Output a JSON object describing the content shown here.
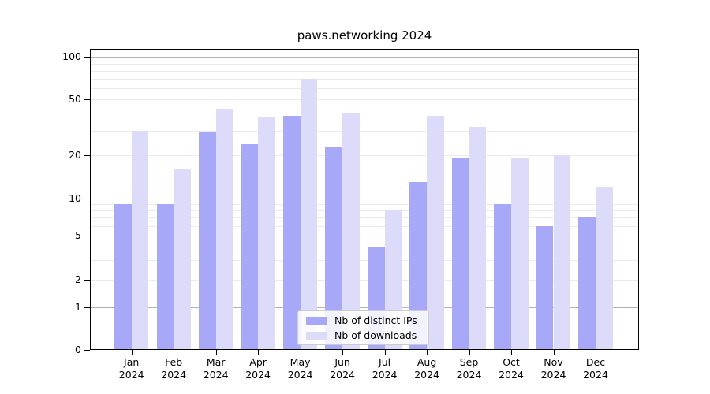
{
  "chart_data": {
    "type": "bar",
    "title": "paws.networking 2024",
    "categories": [
      "Jan",
      "Feb",
      "Mar",
      "Apr",
      "May",
      "Jun",
      "Jul",
      "Aug",
      "Sep",
      "Oct",
      "Nov",
      "Dec"
    ],
    "x_tick_year": "2024",
    "series": [
      {
        "name": "Nb of distinct IPs",
        "color": "#a8a8f8",
        "values": [
          9,
          9,
          29,
          24,
          38,
          23,
          4,
          13,
          19,
          9,
          6,
          7
        ]
      },
      {
        "name": "Nb of downloads",
        "color": "#dcdcfa",
        "values": [
          30,
          16,
          43,
          37,
          70,
          40,
          8,
          38,
          32,
          19,
          20,
          12
        ]
      }
    ],
    "y_scale": "log-like with 0 baseline",
    "y_tick_labels": [
      "100",
      "50",
      "20",
      "10",
      "5",
      "2",
      "1",
      "0"
    ],
    "y_tick_values": [
      100,
      50,
      20,
      10,
      5,
      2,
      1,
      0
    ],
    "y_major_gridlines": [
      1,
      10,
      100
    ],
    "y_minor_gridlines": [
      2,
      3,
      4,
      5,
      6,
      7,
      8,
      9,
      20,
      30,
      40,
      50,
      60,
      70,
      80,
      90
    ],
    "ylim": [
      0,
      115
    ],
    "grid": "on",
    "legend_position": "lower center",
    "colors": {
      "text": "#000000",
      "major_grid": "#b4b4b4",
      "minor_grid": "#ebebeb",
      "spine": "#000000"
    }
  }
}
